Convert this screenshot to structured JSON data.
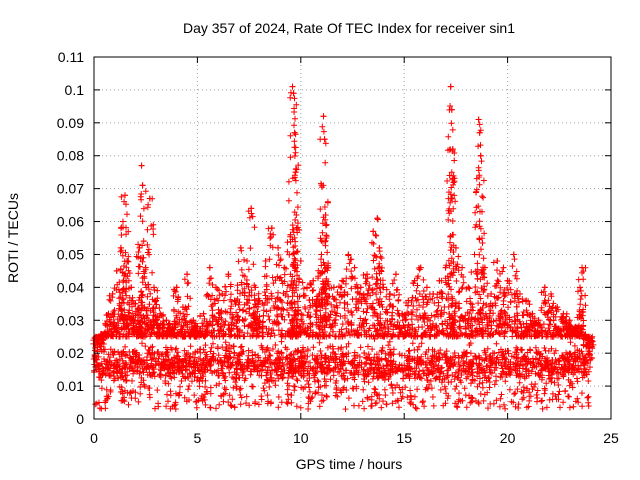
{
  "chart_data": {
    "type": "scatter",
    "title": "Day 357 of 2024, Rate Of TEC Index for receiver sin1",
    "xlabel": "GPS time / hours",
    "ylabel": "ROTI / TECUs",
    "xlim": [
      0,
      25
    ],
    "ylim": [
      0,
      0.11
    ],
    "xticks": [
      0,
      5,
      10,
      15,
      20,
      25
    ],
    "xtick_labels": [
      "0",
      "5",
      "10",
      "15",
      "20",
      "25"
    ],
    "yticks": [
      0,
      0.01,
      0.02,
      0.03,
      0.04,
      0.05,
      0.06,
      0.07,
      0.08,
      0.09,
      0.1,
      0.11
    ],
    "ytick_labels": [
      "0",
      "0.01",
      "0.02",
      "0.03",
      "0.04",
      "0.05",
      "0.06",
      "0.07",
      "0.08",
      "0.09",
      "0.1",
      "0.11"
    ],
    "grid": true,
    "marker": "plus",
    "color": "#ff0000",
    "series": [
      {
        "name": "sin1",
        "x": [
          0.1,
          0.3,
          0.5,
          0.7,
          0.9,
          1.1,
          1.3,
          1.4,
          1.5,
          1.6,
          1.8,
          2.0,
          2.2,
          2.3,
          2.35,
          2.5,
          2.7,
          2.9,
          3.0,
          3.2,
          3.5,
          3.8,
          4.0,
          4.3,
          4.5,
          4.8,
          5.0,
          5.3,
          5.6,
          5.9,
          6.2,
          6.5,
          6.8,
          7.1,
          7.4,
          7.6,
          7.8,
          8.0,
          8.3,
          8.6,
          8.9,
          9.2,
          9.5,
          9.6,
          9.65,
          9.7,
          9.75,
          9.8,
          10.0,
          10.3,
          10.6,
          10.9,
          11.0,
          11.1,
          11.15,
          11.2,
          11.3,
          11.6,
          12.0,
          12.3,
          12.6,
          12.9,
          13.2,
          13.5,
          13.7,
          13.8,
          14.0,
          14.3,
          14.6,
          14.9,
          15.2,
          15.5,
          15.8,
          16.1,
          16.4,
          16.7,
          17.0,
          17.2,
          17.25,
          17.3,
          17.35,
          17.5,
          17.8,
          18.1,
          18.4,
          18.6,
          18.65,
          18.7,
          18.9,
          19.2,
          19.5,
          19.8,
          20.0,
          20.3,
          20.6,
          20.9,
          21.2,
          21.5,
          21.8,
          22.1,
          22.4,
          22.7,
          23.0,
          23.3,
          23.5,
          23.6,
          23.8,
          24.0
        ],
        "y": [
          0.018,
          0.022,
          0.026,
          0.032,
          0.038,
          0.045,
          0.052,
          0.06,
          0.068,
          0.048,
          0.04,
          0.035,
          0.052,
          0.077,
          0.071,
          0.046,
          0.067,
          0.04,
          0.036,
          0.032,
          0.03,
          0.028,
          0.04,
          0.034,
          0.044,
          0.03,
          0.028,
          0.032,
          0.046,
          0.04,
          0.038,
          0.044,
          0.036,
          0.052,
          0.048,
          0.064,
          0.04,
          0.036,
          0.048,
          0.058,
          0.052,
          0.046,
          0.056,
          0.101,
          0.099,
          0.087,
          0.075,
          0.058,
          0.048,
          0.04,
          0.042,
          0.038,
          0.05,
          0.092,
          0.085,
          0.062,
          0.046,
          0.04,
          0.042,
          0.05,
          0.046,
          0.04,
          0.044,
          0.057,
          0.061,
          0.052,
          0.04,
          0.038,
          0.044,
          0.032,
          0.036,
          0.042,
          0.046,
          0.04,
          0.038,
          0.042,
          0.046,
          0.074,
          0.101,
          0.094,
          0.082,
          0.052,
          0.046,
          0.04,
          0.05,
          0.091,
          0.087,
          0.08,
          0.046,
          0.038,
          0.048,
          0.046,
          0.042,
          0.05,
          0.038,
          0.036,
          0.032,
          0.03,
          0.04,
          0.038,
          0.034,
          0.032,
          0.03,
          0.028,
          0.04,
          0.046,
          0.022,
          0.018
        ],
        "band": {
          "typical_low": 0.008,
          "typical_high": 0.025,
          "min": 0.003,
          "note": "dense cloud of points across 0-24 h"
        }
      }
    ]
  }
}
